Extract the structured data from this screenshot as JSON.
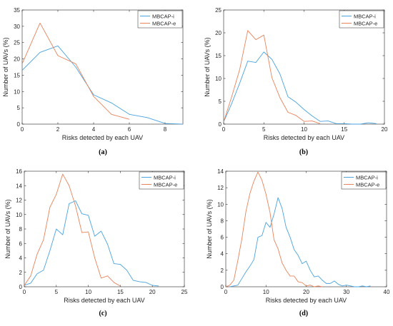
{
  "colors": {
    "mbcap_i": "#4aa3df",
    "mbcap_e": "#e8835a",
    "axis": "#262626",
    "legend_border": "#262626"
  },
  "panels": [
    {
      "label": "(a)"
    },
    {
      "label": "(b)"
    },
    {
      "label": "(c)"
    },
    {
      "label": "(d)"
    }
  ],
  "chart_data": [
    {
      "type": "line",
      "xlabel": "Risks detected by each UAV",
      "ylabel": "Number of UAVs (%)",
      "xlim": [
        0,
        9
      ],
      "ylim": [
        0,
        35
      ],
      "xticks": [
        0,
        2,
        4,
        6,
        8
      ],
      "yticks": [
        0,
        5,
        10,
        15,
        20,
        25,
        30,
        35
      ],
      "legend": "top-right",
      "series": [
        {
          "name": "MBCAP-i",
          "color": "#4aa3df",
          "x": [
            0,
            1,
            2,
            3,
            4,
            5,
            6,
            7,
            8,
            9
          ],
          "y": [
            16.5,
            22,
            24,
            17.5,
            9,
            6.5,
            3,
            2,
            0.2,
            0
          ]
        },
        {
          "name": "MBCAP-e",
          "color": "#e8835a",
          "x": [
            0,
            1,
            2,
            3,
            4,
            5,
            6
          ],
          "y": [
            18.5,
            31,
            21,
            18.5,
            8.5,
            3,
            1.5
          ]
        }
      ]
    },
    {
      "type": "line",
      "xlabel": "Risks detected by each UAV",
      "ylabel": "Number of UAVs (%)",
      "xlim": [
        0,
        20
      ],
      "ylim": [
        0,
        25
      ],
      "xticks": [
        0,
        5,
        10,
        15,
        20
      ],
      "yticks": [
        0,
        5,
        10,
        15,
        20,
        25
      ],
      "legend": "top-right",
      "series": [
        {
          "name": "MBCAP-i",
          "color": "#4aa3df",
          "x": [
            0,
            1,
            2,
            3,
            4,
            5,
            6,
            7,
            8,
            9,
            10,
            11,
            12,
            13,
            14,
            15,
            16,
            17,
            18,
            19
          ],
          "y": [
            0.5,
            4.5,
            9,
            13.8,
            13.5,
            15.8,
            14.2,
            11,
            6,
            4.8,
            3.2,
            1.8,
            0.6,
            0.7,
            0.1,
            0.1,
            0,
            0,
            0.3,
            0.1
          ]
        },
        {
          "name": "MBCAP-e",
          "color": "#e8835a",
          "x": [
            0,
            1,
            2,
            3,
            4,
            5,
            6,
            7,
            8,
            9,
            10,
            11,
            12
          ],
          "y": [
            0.5,
            6,
            12,
            20.5,
            18.5,
            19.5,
            10.2,
            5.8,
            2.6,
            1.9,
            0.6,
            0.7,
            0.1
          ]
        }
      ]
    },
    {
      "type": "line",
      "xlabel": "Risks detected by each UAV",
      "ylabel": "Number of UAVs (%)",
      "xlim": [
        0,
        25
      ],
      "ylim": [
        0,
        16
      ],
      "xticks": [
        0,
        5,
        10,
        15,
        20,
        25
      ],
      "yticks": [
        0,
        2,
        4,
        6,
        8,
        10,
        12,
        14,
        16
      ],
      "legend": "top-right",
      "series": [
        {
          "name": "MBCAP-i",
          "color": "#4aa3df",
          "x": [
            0,
            1,
            2,
            3,
            4,
            5,
            6,
            7,
            8,
            9,
            10,
            11,
            12,
            13,
            14,
            15,
            16,
            17,
            18,
            19,
            20,
            21
          ],
          "y": [
            0.2,
            0.5,
            1.8,
            2.3,
            5,
            8,
            7.2,
            11.5,
            11.9,
            10.1,
            9.9,
            7,
            7.7,
            5.9,
            3.2,
            3.1,
            2.3,
            0.9,
            0.7,
            0.6,
            0.2,
            0.1
          ]
        },
        {
          "name": "MBCAP-e",
          "color": "#e8835a",
          "x": [
            0,
            1,
            2,
            3,
            4,
            5,
            6,
            7,
            8,
            9,
            10,
            11,
            12,
            13,
            14,
            15
          ],
          "y": [
            0.2,
            1.5,
            4.5,
            6.5,
            11,
            12.8,
            15.6,
            14,
            11.2,
            7.5,
            7.6,
            4,
            1.2,
            1.5,
            0.6,
            0.1
          ]
        }
      ]
    },
    {
      "type": "line",
      "xlabel": "Risks detected by each UAV",
      "ylabel": "Number of UAVs (%)",
      "xlim": [
        0,
        40
      ],
      "ylim": [
        0,
        14
      ],
      "xticks": [
        0,
        10,
        20,
        30,
        40
      ],
      "yticks": [
        0,
        2,
        4,
        6,
        8,
        10,
        12,
        14
      ],
      "legend": "top-right",
      "series": [
        {
          "name": "MBCAP-i",
          "color": "#4aa3df",
          "x": [
            1,
            2,
            3,
            4,
            5,
            6,
            7,
            8,
            9,
            10,
            11,
            12,
            13,
            14,
            15,
            16,
            17,
            18,
            19,
            20,
            21,
            22,
            23,
            24,
            25,
            26,
            27,
            28,
            29,
            30,
            31,
            32,
            33,
            34,
            35,
            36
          ],
          "y": [
            0,
            0.1,
            0.2,
            1,
            1.8,
            2.5,
            3.3,
            6,
            6.2,
            7.8,
            7.2,
            8.8,
            10.8,
            9.5,
            7.2,
            6,
            4.5,
            3.8,
            2.8,
            3.1,
            2,
            1.2,
            1.3,
            0.8,
            0.4,
            0.4,
            0.7,
            0.3,
            0.1,
            0.2,
            0.1,
            0,
            0,
            0.1,
            0,
            0.1
          ]
        },
        {
          "name": "MBCAP-e",
          "color": "#e8835a",
          "x": [
            0,
            1,
            2,
            3,
            4,
            5,
            6,
            7,
            8,
            9,
            10,
            11,
            12,
            13,
            14,
            15,
            16,
            17,
            18,
            19,
            20,
            21,
            22,
            23,
            24
          ],
          "y": [
            0,
            0.2,
            0.8,
            3.2,
            5.8,
            9.1,
            11.3,
            12.8,
            13.9,
            12.9,
            11.2,
            9,
            5.7,
            4.6,
            2.9,
            2,
            1.3,
            1.3,
            0.6,
            0.5,
            0.1,
            0.2,
            0,
            0.1,
            0
          ]
        }
      ]
    }
  ]
}
